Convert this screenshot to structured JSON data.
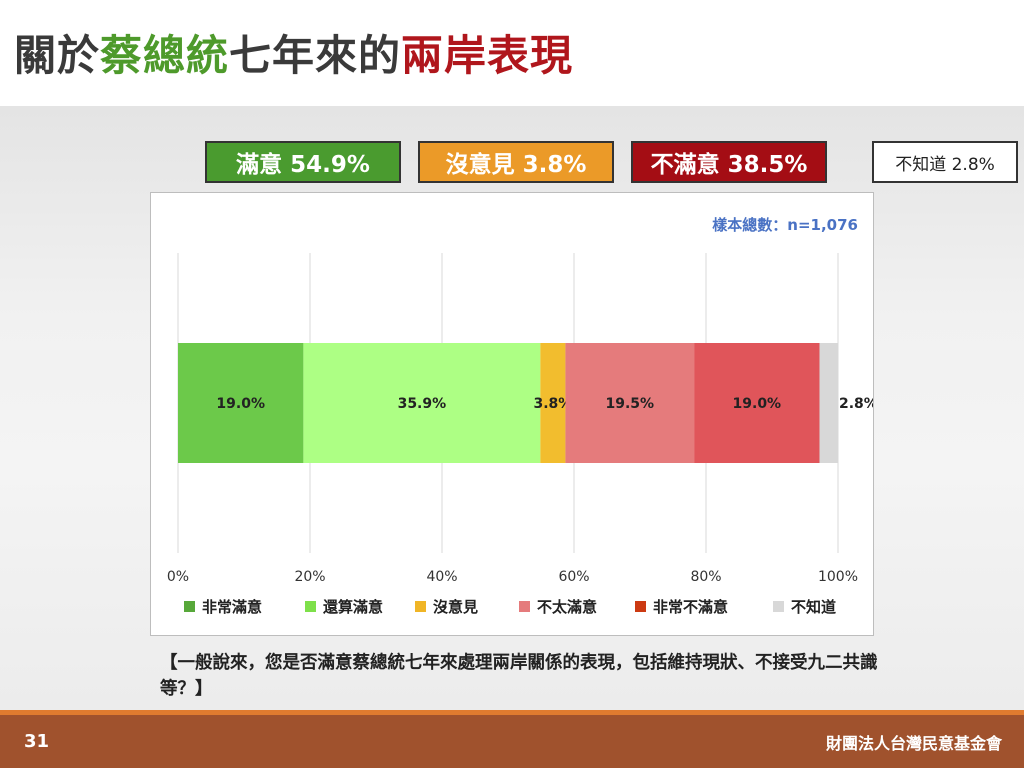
{
  "title": {
    "part1": "關於",
    "part2": "蔡總統",
    "part3": "七年來的",
    "part4": "兩岸表現"
  },
  "summary": [
    {
      "label": "滿意 54.9%",
      "color": "#4a9b2f",
      "text_color": "#ffffff"
    },
    {
      "label": "沒意見 3.8%",
      "color": "#eb9a28",
      "text_color": "#ffffff"
    },
    {
      "label": "不滿意 38.5%",
      "color": "#a40d14",
      "text_color": "#ffffff"
    },
    {
      "label": "不知道 2.8%",
      "color": "#ffffff",
      "text_color": "#222222"
    }
  ],
  "chart_data": {
    "type": "bar",
    "orientation": "horizontal",
    "stacked": true,
    "sample_note": "樣本總數：n=1,076",
    "xlim": [
      0,
      100
    ],
    "x_ticks": [
      "0%",
      "20%",
      "40%",
      "60%",
      "80%",
      "100%"
    ],
    "grid": true,
    "legend_position": "bottom",
    "series": [
      {
        "name": "非常滿意",
        "value": 19.0,
        "label": "19.0%",
        "color": "#6cc94a"
      },
      {
        "name": "還算滿意",
        "value": 35.9,
        "label": "35.9%",
        "color": "#adff84"
      },
      {
        "name": "沒意見",
        "value": 3.8,
        "label": "3.8%",
        "color": "#f2bd2e"
      },
      {
        "name": "不太滿意",
        "value": 19.5,
        "label": "19.5%",
        "color": "#e57b7c"
      },
      {
        "name": "非常不滿意",
        "value": 19.0,
        "label": "19.0%",
        "color": "#e0555a"
      },
      {
        "name": "不知道",
        "value": 2.8,
        "label": "2.8%",
        "color": "#d8d8d8"
      }
    ],
    "legend_colors": [
      "#57a83a",
      "#7ee04a",
      "#f0b526",
      "#e57b7c",
      "#cc3a12",
      "#d8d8d8"
    ]
  },
  "question": "【一般說來，您是否滿意蔡總統七年來處理兩岸關係的表現，包括維持現狀、不接受九二共識等？】",
  "footer": {
    "page_number": "31",
    "organization": "財團法人台灣民意基金會"
  }
}
